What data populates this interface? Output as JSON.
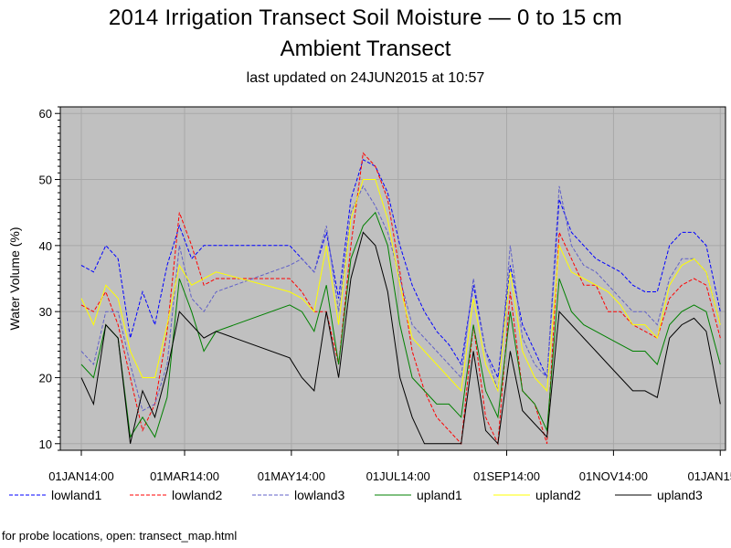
{
  "header": {
    "title": "2014 Irrigation Transect Soil Moisture — 0 to 15 cm",
    "subtitle": "Ambient Transect",
    "updated": "last updated on 24JUN2015 at 10:57"
  },
  "footer": {
    "text": "for probe locations, open: transect_map.html"
  },
  "colors": {
    "plot_background": "#c0c0c0",
    "grid": "#a8a8a8",
    "lowland1": "#0000ff",
    "lowland2": "#ff0000",
    "lowland3": "#6060c8",
    "upland1": "#008000",
    "upland2": "#ffff00",
    "upland3": "#000000"
  },
  "chart_data": {
    "type": "line",
    "title": "2014 Irrigation Transect Soil Moisture — 0 to 15 cm",
    "subtitle": "Ambient Transect",
    "xlabel": "",
    "ylabel": "Water Volume (%)",
    "ylim": [
      9,
      61
    ],
    "xlim": [
      "2013-12-20",
      "2015-01-04"
    ],
    "y_ticks": [
      10,
      20,
      30,
      40,
      50,
      60
    ],
    "x_ticks": [
      {
        "date": "2014-01-01",
        "label": "01JAN14:00"
      },
      {
        "date": "2014-03-01",
        "label": "01MAR14:00"
      },
      {
        "date": "2014-05-01",
        "label": "01MAY14:00"
      },
      {
        "date": "2014-07-01",
        "label": "01JUL14:00"
      },
      {
        "date": "2014-09-01",
        "label": "01SEP14:00"
      },
      {
        "date": "2014-11-01",
        "label": "01NOV14:00"
      },
      {
        "date": "2015-01-01",
        "label": "01JAN15:00"
      }
    ],
    "grid": true,
    "legend_position": "bottom",
    "x": [
      "2014-01-01",
      "2014-01-08",
      "2014-01-15",
      "2014-01-22",
      "2014-01-29",
      "2014-02-05",
      "2014-02-12",
      "2014-02-19",
      "2014-02-26",
      "2014-03-05",
      "2014-03-12",
      "2014-03-19",
      "2014-04-30",
      "2014-05-07",
      "2014-05-14",
      "2014-05-21",
      "2014-05-28",
      "2014-06-04",
      "2014-06-11",
      "2014-06-18",
      "2014-06-25",
      "2014-07-02",
      "2014-07-09",
      "2014-07-16",
      "2014-07-23",
      "2014-07-30",
      "2014-08-06",
      "2014-08-13",
      "2014-08-20",
      "2014-08-27",
      "2014-09-03",
      "2014-09-10",
      "2014-09-17",
      "2014-09-24",
      "2014-10-01",
      "2014-10-08",
      "2014-10-15",
      "2014-10-22",
      "2014-10-29",
      "2014-11-05",
      "2014-11-12",
      "2014-11-19",
      "2014-11-26",
      "2014-12-03",
      "2014-12-10",
      "2014-12-17",
      "2014-12-24",
      "2015-01-01"
    ],
    "series": [
      {
        "name": "lowland1",
        "dash": "dashed",
        "values": [
          37,
          36,
          40,
          38,
          26,
          33,
          28,
          37,
          43,
          38,
          40,
          40,
          40,
          38,
          36,
          42,
          32,
          47,
          53,
          52,
          48,
          40,
          34,
          30,
          27,
          25,
          22,
          34,
          24,
          20,
          37,
          28,
          24,
          20,
          47,
          42,
          40,
          38,
          37,
          36,
          34,
          33,
          33,
          40,
          42,
          42,
          40,
          30
        ]
      },
      {
        "name": "lowland2",
        "dash": "dashed",
        "values": [
          31,
          30,
          33,
          28,
          20,
          12,
          16,
          27,
          45,
          40,
          34,
          35,
          35,
          33,
          30,
          30,
          22,
          40,
          54,
          52,
          47,
          36,
          24,
          18,
          14,
          12,
          10,
          28,
          14,
          10,
          33,
          18,
          16,
          10,
          42,
          38,
          34,
          34,
          30,
          30,
          28,
          27,
          26,
          32,
          34,
          35,
          34,
          26
        ]
      },
      {
        "name": "lowland3",
        "dash": "dashed",
        "values": [
          24,
          22,
          30,
          30,
          22,
          15,
          16,
          22,
          40,
          32,
          30,
          33,
          37,
          38,
          36,
          43,
          30,
          45,
          49,
          46,
          42,
          35,
          28,
          26,
          24,
          22,
          20,
          35,
          24,
          18,
          40,
          26,
          22,
          20,
          49,
          40,
          37,
          36,
          34,
          32,
          30,
          30,
          28,
          35,
          38,
          38,
          36,
          28
        ]
      },
      {
        "name": "upland1",
        "dash": "solid",
        "values": [
          22,
          20,
          28,
          26,
          11,
          14,
          11,
          17,
          35,
          30,
          24,
          27,
          31,
          30,
          27,
          34,
          22,
          38,
          43,
          45,
          40,
          28,
          20,
          18,
          16,
          16,
          14,
          28,
          18,
          14,
          30,
          18,
          16,
          12,
          35,
          30,
          28,
          27,
          26,
          25,
          24,
          24,
          22,
          28,
          30,
          31,
          30,
          22
        ]
      },
      {
        "name": "upland2",
        "dash": "solid",
        "values": [
          32,
          28,
          34,
          32,
          24,
          20,
          20,
          28,
          37,
          34,
          35,
          36,
          33,
          32,
          30,
          40,
          28,
          44,
          50,
          50,
          44,
          34,
          26,
          24,
          22,
          20,
          18,
          32,
          22,
          18,
          36,
          24,
          20,
          18,
          40,
          36,
          35,
          34,
          33,
          31,
          28,
          28,
          26,
          34,
          37,
          38,
          36,
          28
        ]
      },
      {
        "name": "upland3",
        "dash": "solid",
        "values": [
          20,
          16,
          28,
          26,
          10,
          18,
          14,
          21,
          30,
          28,
          26,
          27,
          23,
          20,
          18,
          30,
          20,
          35,
          42,
          40,
          33,
          20,
          14,
          10,
          10,
          10,
          10,
          24,
          12,
          10,
          24,
          15,
          13,
          11,
          30,
          28,
          26,
          24,
          22,
          20,
          18,
          18,
          17,
          26,
          28,
          29,
          27,
          16
        ]
      }
    ]
  }
}
